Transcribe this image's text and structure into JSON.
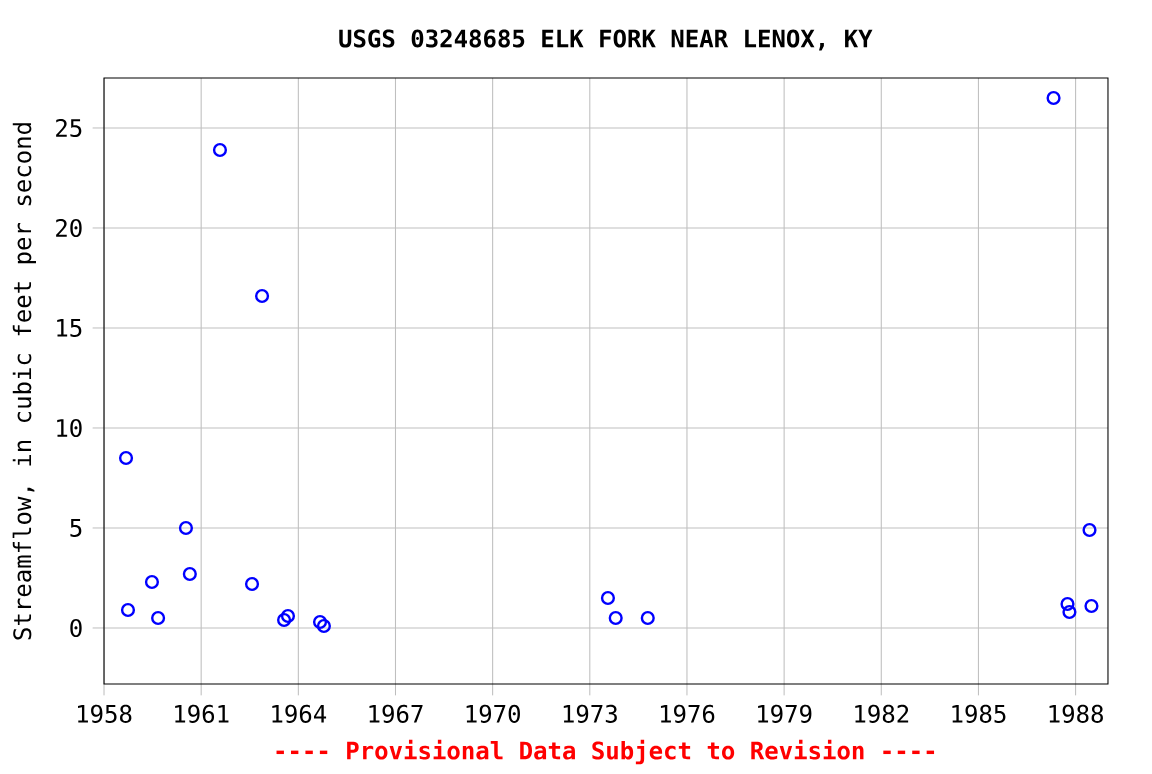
{
  "chart_data": {
    "type": "scatter",
    "title": "USGS 03248685 ELK FORK NEAR LENOX, KY",
    "ylabel": "Streamflow, in cubic feet per second",
    "annotations": [
      "---- Provisional Data Subject to Revision ----"
    ],
    "x": [
      1958.68,
      1958.74,
      1959.48,
      1959.67,
      1960.53,
      1960.65,
      1961.58,
      1962.57,
      1962.88,
      1963.56,
      1963.68,
      1964.67,
      1964.79,
      1973.56,
      1973.8,
      1974.79,
      1987.32,
      1987.75,
      1987.81,
      1988.43,
      1988.49
    ],
    "series": [
      {
        "color": "#0000ff",
        "values": [
          8.5,
          0.9,
          2.3,
          0.5,
          5.0,
          2.7,
          23.9,
          2.2,
          16.6,
          0.4,
          0.6,
          0.3,
          0.1,
          1.5,
          0.5,
          0.5,
          26.5,
          1.2,
          0.8,
          4.9,
          1.1
        ]
      }
    ],
    "xlim": [
      1958,
      1989
    ],
    "ylim": [
      -2.8,
      27.5
    ],
    "xticks": [
      1958,
      1961,
      1964,
      1967,
      1970,
      1973,
      1976,
      1979,
      1982,
      1985,
      1988
    ],
    "yticks": [
      0,
      5,
      10,
      15,
      20,
      25
    ],
    "grid": true,
    "marker": "circle"
  }
}
